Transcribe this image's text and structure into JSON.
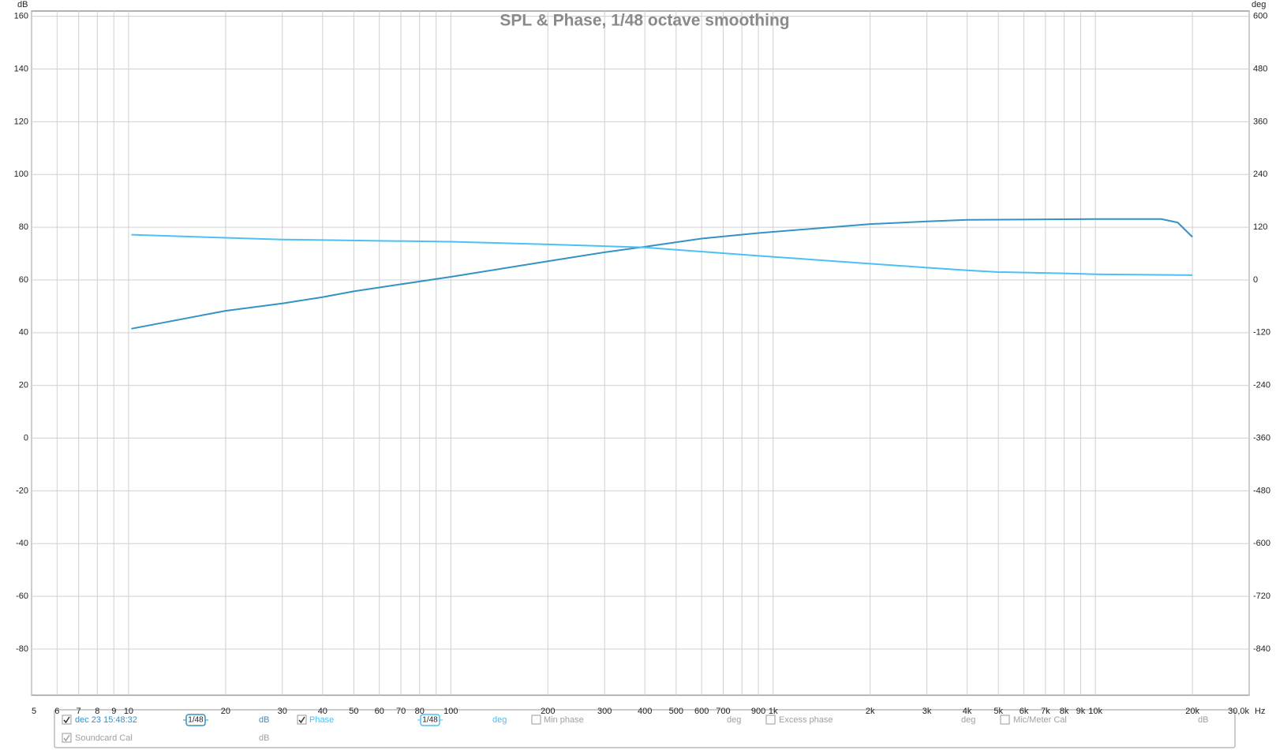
{
  "chart_data": {
    "type": "line",
    "title": "SPL & Phase, 1/48 octave smoothing",
    "y_label": "dB",
    "y2_label": "deg",
    "x_unit": "Hz",
    "xscale": "log",
    "grid": true,
    "xlim": [
      5,
      30000
    ],
    "ylim": [
      -97.5,
      162
    ],
    "y2lim": [
      -945,
      612
    ],
    "xticks": [
      5,
      6,
      7,
      8,
      9,
      10,
      20,
      30,
      40,
      50,
      60,
      70,
      80,
      {
        "value": 90,
        "label": null
      },
      100,
      200,
      300,
      400,
      500,
      600,
      700,
      {
        "value": 800,
        "label": null
      },
      900,
      {
        "value": 1000,
        "label": "1k"
      },
      {
        "value": 2000,
        "label": "2k"
      },
      {
        "value": 3000,
        "label": "3k"
      },
      {
        "value": 4000,
        "label": "4k"
      },
      {
        "value": 5000,
        "label": "5k"
      },
      {
        "value": 6000,
        "label": "6k"
      },
      {
        "value": 7000,
        "label": "7k"
      },
      {
        "value": 8000,
        "label": "8k"
      },
      {
        "value": 9000,
        "label": "9k"
      },
      {
        "value": 10000,
        "label": "10k"
      },
      {
        "value": 20000,
        "label": "20k"
      },
      {
        "value": 30000,
        "label": "30,0k"
      }
    ],
    "yticks": [
      160,
      140,
      120,
      100,
      80,
      60,
      40,
      20,
      0,
      -20,
      -40,
      -60,
      -80
    ],
    "y2ticks": [
      600,
      480,
      360,
      240,
      120,
      0,
      -120,
      -240,
      -360,
      -480,
      -600,
      -720,
      -840
    ],
    "series": [
      {
        "name": "dec 23 15:48:32",
        "color": "#3592c4",
        "smoothing": "1/48",
        "unit": "dB",
        "checked": true,
        "x": [
          10.2,
          20,
          30,
          40,
          50,
          100,
          200,
          300,
          400,
          600,
          900,
          2000,
          3000,
          4000,
          10000,
          16000,
          18000,
          20000
        ],
        "values": [
          41.5,
          48.3,
          51.1,
          53.5,
          55.7,
          61.2,
          67.1,
          70.5,
          72.6,
          75.7,
          77.8,
          81.2,
          82.2,
          82.8,
          83.1,
          83.1,
          81.8,
          76.3
        ]
      },
      {
        "name": "Phase",
        "color": "#4cc0f5",
        "smoothing": "1/48",
        "unit": "deg",
        "checked": true,
        "axis": "y2",
        "x": [
          10.2,
          20,
          30,
          100,
          200,
          400,
          900,
          2000,
          3000,
          4000,
          5000,
          8000,
          10000,
          20000
        ],
        "values": [
          103,
          96,
          92,
          87,
          81,
          74,
          55,
          37,
          28,
          22,
          18,
          15,
          13,
          11
        ]
      }
    ],
    "extra_traces": [
      {
        "name": "Min phase",
        "unit": "deg",
        "checked": false
      },
      {
        "name": "Excess phase",
        "unit": "deg",
        "checked": false
      },
      {
        "name": "Mic/Meter Cal",
        "unit": "dB",
        "checked": false
      },
      {
        "name": "Soundcard Cal",
        "unit": "dB",
        "checked": true
      }
    ]
  }
}
